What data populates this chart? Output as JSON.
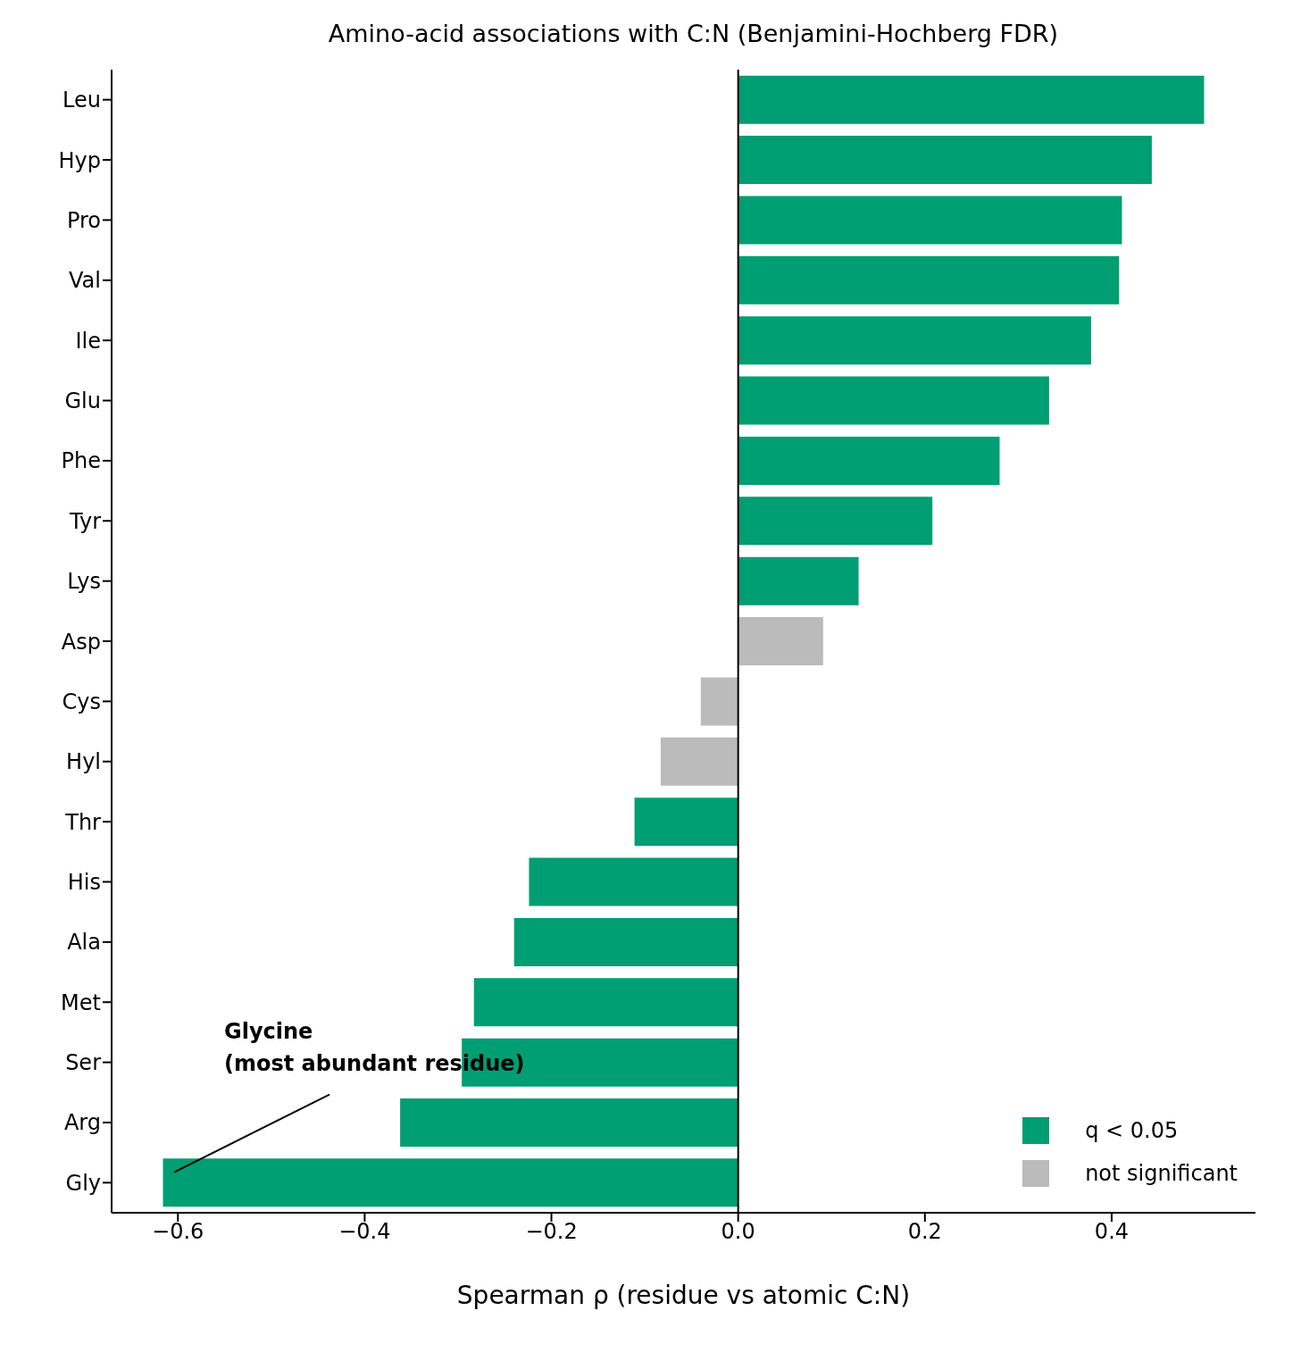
{
  "chart_data": {
    "type": "bar",
    "orientation": "horizontal",
    "stacked": true,
    "title": "Amino-acid associations with C:N (Benjamini-Hochberg FDR)",
    "xlabel": "Spearman ρ (residue vs atomic C:N)",
    "categories": [
      "Leu",
      "Hyp",
      "Pro",
      "Val",
      "Ile",
      "Glu",
      "Phe",
      "Tyr",
      "Lys",
      "Asp",
      "Cys",
      "Hyl",
      "Thr",
      "His",
      "Ala",
      "Met",
      "Ser",
      "Arg",
      "Gly"
    ],
    "series": [
      {
        "name": "q < 0.05",
        "color": "#009e73",
        "values": [
          0.499,
          0.443,
          0.411,
          0.408,
          0.378,
          0.333,
          0.28,
          0.208,
          0.129,
          null,
          null,
          null,
          -0.111,
          -0.224,
          -0.24,
          -0.283,
          -0.296,
          -0.362,
          -0.616
        ]
      },
      {
        "name": "not significant",
        "color": "#bbbbbb",
        "values": [
          null,
          null,
          null,
          null,
          null,
          null,
          null,
          null,
          null,
          0.091,
          -0.04,
          -0.083,
          null,
          null,
          null,
          null,
          null,
          null,
          null
        ]
      }
    ],
    "xlim": [
      -0.671,
      0.554
    ],
    "xticks": [
      {
        "value": -0.6,
        "label": "−0.6"
      },
      {
        "value": -0.4,
        "label": "−0.4"
      },
      {
        "value": -0.2,
        "label": "−0.2"
      },
      {
        "value": 0,
        "label": "0.0"
      },
      {
        "value": 0.2,
        "label": "0.2"
      },
      {
        "value": 0.4,
        "label": "0.4"
      }
    ],
    "ref_lines": [
      {
        "axis": "x",
        "value": 0,
        "color": "#000000"
      }
    ],
    "annotations": [
      "Glycine\n(most abundant residue)"
    ],
    "legend": "bottom right",
    "grid": false
  }
}
